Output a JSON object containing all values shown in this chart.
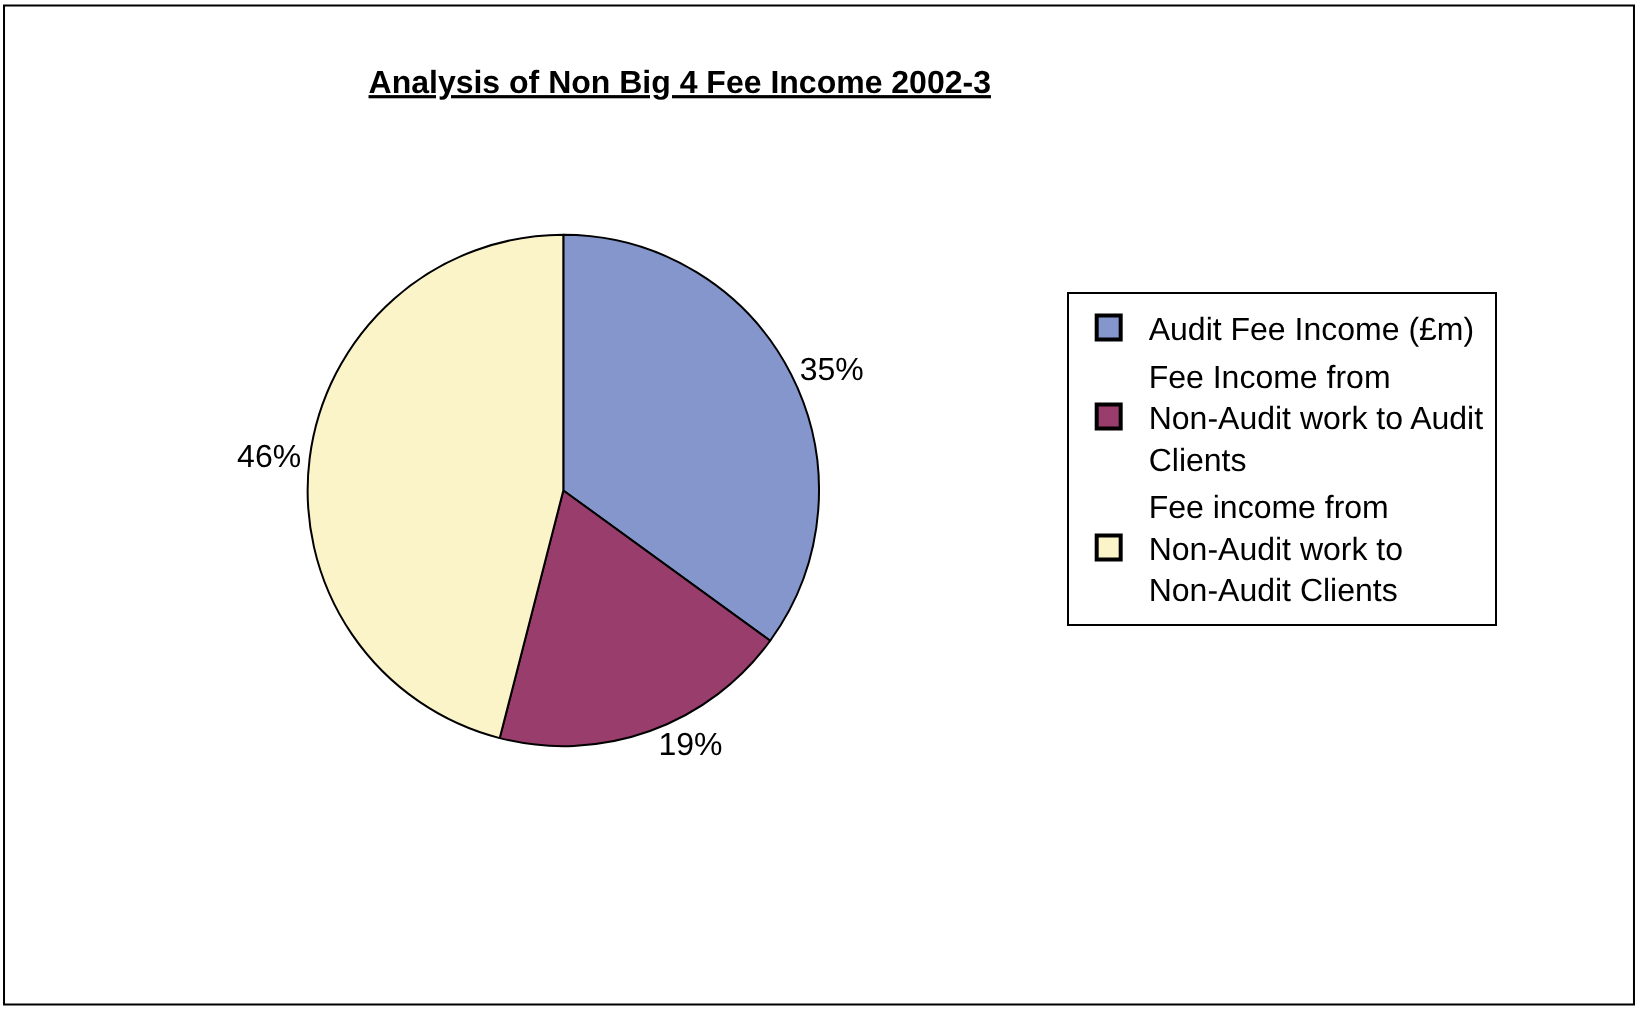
{
  "chart_data": {
    "type": "pie",
    "title": "Analysis of Non Big 4 Fee Income 2002-3",
    "categories": [
      "Audit Fee Income (£m)",
      "Fee Income from Non-Audit work to Audit Clients",
      "Fee income from Non-Audit work to Non-Audit Clients"
    ],
    "values": [
      35,
      19,
      46
    ],
    "value_labels": [
      "35%",
      "19%",
      "46%"
    ],
    "colors": [
      "#8496cc",
      "#993d6c",
      "#fbf4c9"
    ],
    "legend": "right"
  }
}
